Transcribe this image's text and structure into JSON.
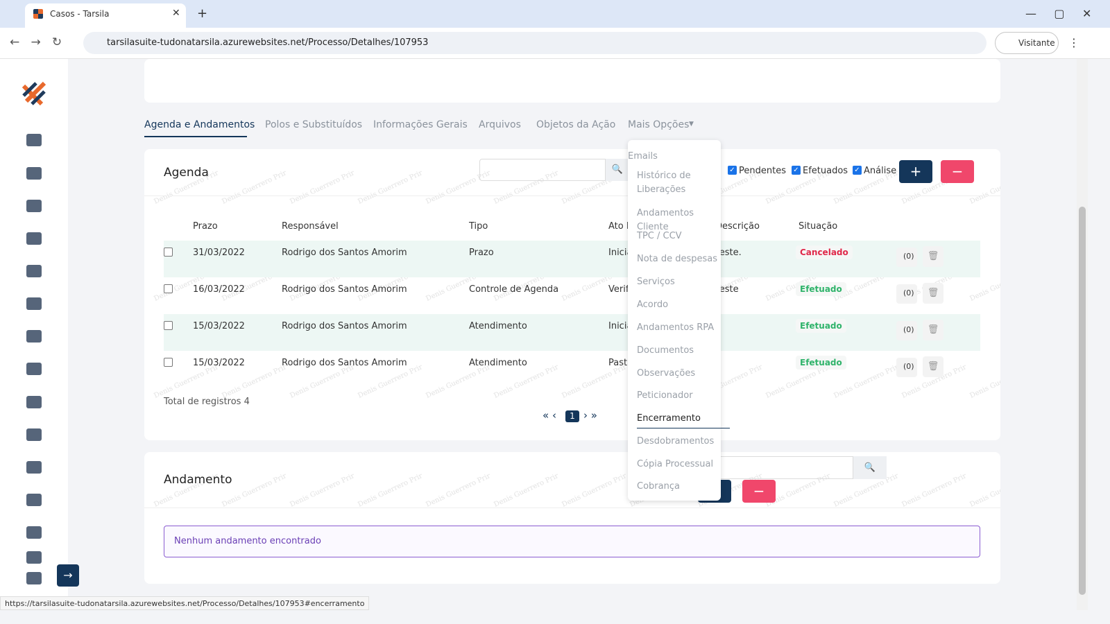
{
  "browser": {
    "tab_title": "Casos - Tarsila",
    "url": "tarsilasuite-tudonatarsila.azurewebsites.net/Processo/Detalhes/107953",
    "profile": "Visitante",
    "status_url": "https://tarsilasuite-tudonatarsila.azurewebsites.net/Processo/Detalhes/107953#encerramento"
  },
  "watermark": "Denis Guerrero Prir",
  "tabs": [
    "Agenda e Andamentos",
    "Polos e Substituídos",
    "Informações Gerais",
    "Arquivos",
    "Objetos da Ação",
    "Mais Opções"
  ],
  "agenda": {
    "title": "Agenda",
    "filters": [
      "Pendentes",
      "Efetuados",
      "Análise"
    ],
    "add_label": "+",
    "remove_label": "−",
    "columns": [
      "Prazo",
      "Responsável",
      "Tipo",
      "Ato P",
      "Descrição",
      "Situação"
    ],
    "rows": [
      {
        "prazo": "31/03/2022",
        "responsavel": "Rodrigo dos Santos Amorim",
        "tipo": "Prazo",
        "ato": "Inicia",
        "descricao": "Teste.",
        "situacao": "Cancelado",
        "situacao_color": "#e0284a",
        "anexos": "(0)"
      },
      {
        "prazo": "16/03/2022",
        "responsavel": "Rodrigo dos Santos Amorim",
        "tipo": "Controle de Agenda",
        "ato": "Verif",
        "descricao": "Teste",
        "situacao": "Efetuado",
        "situacao_color": "#2fb36a",
        "anexos": "(0)"
      },
      {
        "prazo": "15/03/2022",
        "responsavel": "Rodrigo dos Santos Amorim",
        "tipo": "Atendimento",
        "ato": "Inicia",
        "descricao": "",
        "situacao": "Efetuado",
        "situacao_color": "#2fb36a",
        "anexos": "(0)"
      },
      {
        "prazo": "15/03/2022",
        "responsavel": "Rodrigo dos Santos Amorim",
        "tipo": "Atendimento",
        "ato": "Pasta",
        "descricao": "",
        "situacao": "Efetuado",
        "situacao_color": "#2fb36a",
        "anexos": "(0)"
      }
    ],
    "total": "Total de registros 4",
    "page": "1"
  },
  "dropdown": [
    "Emails",
    "Histórico de Liberações",
    "Andamentos Cliente",
    "TPC / CCV",
    "Nota de despesas",
    "Serviços",
    "Acordo",
    "Andamentos RPA",
    "Documentos",
    "Observações",
    "Peticionador",
    "Encerramento",
    "Desdobramentos",
    "Cópia Processual",
    "Cobrança"
  ],
  "andamento": {
    "title": "Andamento",
    "empty": "Nenhum andamento encontrado",
    "remove_label": "−"
  }
}
